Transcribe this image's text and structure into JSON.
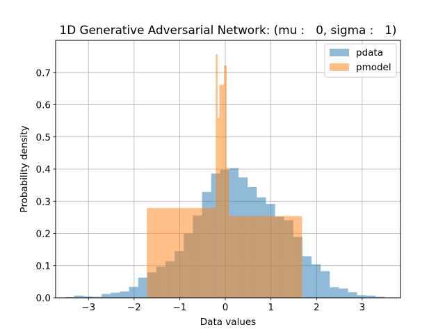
{
  "chart_data": {
    "type": "bar",
    "title": "1D Generative Adversarial Network: (mu :   0, sigma :   1)",
    "xlabel": "Data values",
    "ylabel": "Probability density",
    "xlim": [
      -3.72,
      3.84
    ],
    "ylim": [
      0,
      0.8
    ],
    "xticks": [
      -3,
      -2,
      -1,
      0,
      1,
      2,
      3
    ],
    "xtick_labels": [
      "−3",
      "−2",
      "−1",
      "0",
      "1",
      "2",
      "3"
    ],
    "yticks": [
      0.0,
      0.1,
      0.2,
      0.3,
      0.4,
      0.5,
      0.6,
      0.7
    ],
    "ytick_labels": [
      "0.0",
      "0.1",
      "0.2",
      "0.3",
      "0.4",
      "0.5",
      "0.6",
      "0.7"
    ],
    "grid": true,
    "legend_position": "top-right",
    "series": [
      {
        "name": "pdata",
        "color": "#1f77b4",
        "alpha": 0.5,
        "bin_edges": [
          -3.51,
          -3.31,
          -3.11,
          -2.91,
          -2.71,
          -2.51,
          -2.31,
          -2.11,
          -1.91,
          -1.71,
          -1.51,
          -1.31,
          -1.11,
          -0.91,
          -0.71,
          -0.51,
          -0.31,
          -0.11,
          0.09,
          0.29,
          0.49,
          0.69,
          0.89,
          1.09,
          1.29,
          1.49,
          1.69,
          1.89,
          2.09,
          2.29,
          2.49,
          2.69,
          2.89,
          3.09,
          3.29,
          3.49
        ],
        "values": [
          0.002,
          0.007,
          0.004,
          0.003,
          0.012,
          0.016,
          0.02,
          0.034,
          0.063,
          0.079,
          0.097,
          0.114,
          0.145,
          0.2,
          0.256,
          0.329,
          0.386,
          0.398,
          0.403,
          0.374,
          0.344,
          0.312,
          0.292,
          0.252,
          0.241,
          0.189,
          0.129,
          0.104,
          0.083,
          0.033,
          0.029,
          0.017,
          0.008,
          0.007,
          0.003
        ]
      },
      {
        "name": "pmodel",
        "color": "#ff7f0e",
        "alpha": 0.5,
        "bin_edges": [
          -1.72,
          -1.47,
          -1.3,
          -1.2,
          -1.1,
          -0.95,
          -0.8,
          -0.6,
          -0.35,
          -0.21,
          -0.19,
          -0.17,
          -0.15,
          -0.13,
          -0.09,
          -0.03,
          0.03,
          0.08,
          0.18,
          0.38,
          0.58,
          0.78,
          0.98,
          1.1,
          1.3,
          1.6,
          1.68
        ],
        "values": [
          0.279,
          0.279,
          0.279,
          0.279,
          0.279,
          0.279,
          0.279,
          0.279,
          0.279,
          0.757,
          0.757,
          0.559,
          0.559,
          0.662,
          0.662,
          0.722,
          0.403,
          0.254,
          0.254,
          0.254,
          0.254,
          0.254,
          0.254,
          0.254,
          0.254,
          0.254
        ]
      }
    ]
  }
}
